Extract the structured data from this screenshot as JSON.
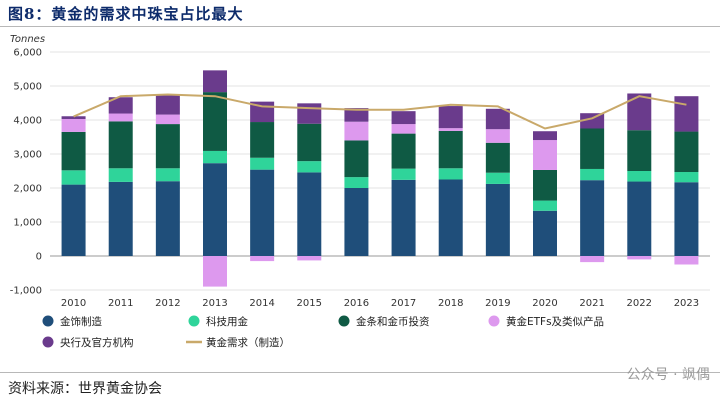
{
  "header": {
    "title": "图8：黄金的需求中珠宝占比最大"
  },
  "footer": {
    "source": "资料来源：世界黄金协会",
    "watermark": "公众号 · 飒偶"
  },
  "chart_data": {
    "type": "bar",
    "stacked": true,
    "unit_label": "Tonnes",
    "categories": [
      "2010",
      "2011",
      "2012",
      "2013",
      "2014",
      "2015",
      "2016",
      "2017",
      "2018",
      "2019",
      "2020",
      "2021",
      "2022",
      "2023"
    ],
    "ylim": [
      -1000,
      6000
    ],
    "yticks": [
      "-1,000",
      "0",
      "1,000",
      "2,000",
      "3,000",
      "4,000",
      "5,000",
      "6,000"
    ],
    "ytick_values": [
      -1000,
      0,
      1000,
      2000,
      3000,
      4000,
      5000,
      6000
    ],
    "grid": true,
    "legend_position": "bottom",
    "series": [
      {
        "name": "金饰制造",
        "color": "#1f4e7a",
        "values": [
          2100,
          2180,
          2200,
          2730,
          2540,
          2460,
          2000,
          2240,
          2250,
          2120,
          1330,
          2230,
          2190,
          2170
        ]
      },
      {
        "name": "科技用金",
        "color": "#2fd49a",
        "values": [
          420,
          400,
          380,
          360,
          350,
          330,
          320,
          330,
          330,
          330,
          300,
          330,
          310,
          300
        ]
      },
      {
        "name": "金条和金币投资",
        "color": "#0f5a44",
        "values": [
          1130,
          1380,
          1300,
          1730,
          1050,
          1100,
          1080,
          1030,
          1100,
          880,
          900,
          1190,
          1200,
          1190
        ]
      },
      {
        "name": "黄金ETFs及类似产品",
        "color": "#dd99ee",
        "values": [
          380,
          230,
          280,
          -900,
          -150,
          -130,
          550,
          280,
          80,
          400,
          880,
          -180,
          -100,
          -250
        ]
      },
      {
        "name": "央行及官方机构",
        "color": "#6a3b8c",
        "values": [
          80,
          480,
          560,
          640,
          600,
          600,
          400,
          380,
          650,
          600,
          260,
          450,
          1080,
          1040
        ]
      }
    ],
    "line": {
      "name": "黄金需求（制造）",
      "color": "#c9a96a",
      "values": [
        4100,
        4700,
        4750,
        4700,
        4400,
        4350,
        4300,
        4300,
        4450,
        4400,
        3750,
        4050,
        4700,
        4450
      ]
    }
  }
}
